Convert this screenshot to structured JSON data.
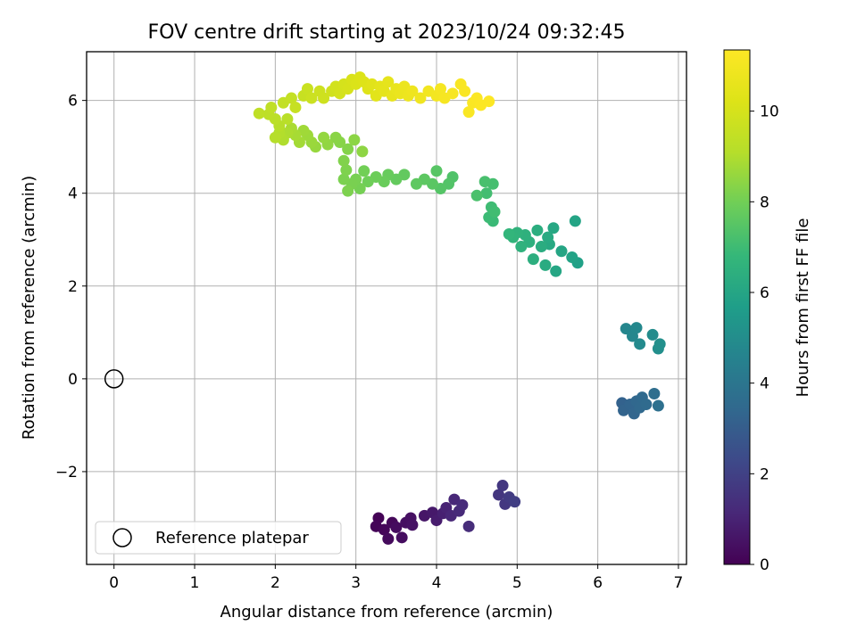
{
  "chart_data": {
    "type": "scatter",
    "title": "FOV centre drift starting at 2023/10/24 09:32:45",
    "xlabel": "Angular distance from reference (arcmin)",
    "ylabel": "Rotation from reference (arcmin)",
    "xlim": [
      -0.34,
      7.1
    ],
    "ylim": [
      -4.0,
      7.05
    ],
    "xticks": [
      "0",
      "1",
      "2",
      "3",
      "4",
      "5",
      "6",
      "7"
    ],
    "yticks": [
      "−2",
      "0",
      "2",
      "4",
      "6"
    ],
    "grid": true,
    "legend": {
      "placement": "lower-left",
      "entries": [
        "Reference platepar"
      ]
    },
    "reference": {
      "name": "Reference platepar",
      "x": 0,
      "y": 0
    },
    "colorbar": {
      "label": "Hours from first FF file",
      "min": 0,
      "max": 11.35,
      "ticks": [
        "0",
        "2",
        "4",
        "6",
        "8",
        "10"
      ],
      "colormap": "viridis"
    },
    "points": [
      {
        "x": 3.28,
        "y": -3.0,
        "h": 0.05
      },
      {
        "x": 3.25,
        "y": -3.18,
        "h": 0.1
      },
      {
        "x": 3.35,
        "y": -3.25,
        "h": 0.15
      },
      {
        "x": 3.45,
        "y": -3.1,
        "h": 0.2
      },
      {
        "x": 3.4,
        "y": -3.45,
        "h": 0.25
      },
      {
        "x": 3.5,
        "y": -3.2,
        "h": 0.3
      },
      {
        "x": 3.57,
        "y": -3.42,
        "h": 0.35
      },
      {
        "x": 3.62,
        "y": -3.1,
        "h": 0.4
      },
      {
        "x": 3.68,
        "y": -3.0,
        "h": 0.45
      },
      {
        "x": 3.7,
        "y": -3.15,
        "h": 0.5
      },
      {
        "x": 3.85,
        "y": -2.95,
        "h": 0.6
      },
      {
        "x": 3.95,
        "y": -2.88,
        "h": 0.7
      },
      {
        "x": 4.0,
        "y": -3.05,
        "h": 0.8
      },
      {
        "x": 4.08,
        "y": -2.9,
        "h": 0.9
      },
      {
        "x": 4.12,
        "y": -2.78,
        "h": 1.0
      },
      {
        "x": 4.18,
        "y": -2.95,
        "h": 1.1
      },
      {
        "x": 4.22,
        "y": -2.6,
        "h": 1.15
      },
      {
        "x": 4.28,
        "y": -2.85,
        "h": 1.2
      },
      {
        "x": 4.32,
        "y": -2.72,
        "h": 1.25
      },
      {
        "x": 4.4,
        "y": -3.18,
        "h": 1.3
      },
      {
        "x": 4.77,
        "y": -2.5,
        "h": 1.6
      },
      {
        "x": 4.82,
        "y": -2.3,
        "h": 1.65
      },
      {
        "x": 4.85,
        "y": -2.7,
        "h": 1.7
      },
      {
        "x": 4.9,
        "y": -2.55,
        "h": 1.8
      },
      {
        "x": 4.97,
        "y": -2.65,
        "h": 1.9
      },
      {
        "x": 6.3,
        "y": -0.52,
        "h": 3.2
      },
      {
        "x": 6.32,
        "y": -0.68,
        "h": 3.25
      },
      {
        "x": 6.4,
        "y": -0.55,
        "h": 3.3
      },
      {
        "x": 6.45,
        "y": -0.75,
        "h": 3.35
      },
      {
        "x": 6.48,
        "y": -0.48,
        "h": 3.4
      },
      {
        "x": 6.52,
        "y": -0.62,
        "h": 3.45
      },
      {
        "x": 6.55,
        "y": -0.4,
        "h": 3.5
      },
      {
        "x": 6.6,
        "y": -0.55,
        "h": 3.55
      },
      {
        "x": 6.7,
        "y": -0.32,
        "h": 3.65
      },
      {
        "x": 6.75,
        "y": -0.58,
        "h": 3.75
      },
      {
        "x": 6.35,
        "y": 1.08,
        "h": 4.7
      },
      {
        "x": 6.43,
        "y": 0.92,
        "h": 4.75
      },
      {
        "x": 6.48,
        "y": 1.1,
        "h": 4.8
      },
      {
        "x": 6.52,
        "y": 0.75,
        "h": 4.85
      },
      {
        "x": 6.68,
        "y": 0.95,
        "h": 4.95
      },
      {
        "x": 6.75,
        "y": 0.65,
        "h": 5.05
      },
      {
        "x": 6.77,
        "y": 0.75,
        "h": 5.1
      },
      {
        "x": 5.75,
        "y": 2.5,
        "h": 5.8
      },
      {
        "x": 5.68,
        "y": 2.62,
        "h": 5.9
      },
      {
        "x": 5.72,
        "y": 3.4,
        "h": 5.95
      },
      {
        "x": 5.55,
        "y": 2.75,
        "h": 6.0
      },
      {
        "x": 5.48,
        "y": 2.32,
        "h": 6.05
      },
      {
        "x": 5.45,
        "y": 3.25,
        "h": 6.1
      },
      {
        "x": 5.4,
        "y": 2.9,
        "h": 6.15
      },
      {
        "x": 5.38,
        "y": 3.05,
        "h": 6.2
      },
      {
        "x": 5.35,
        "y": 2.45,
        "h": 6.25
      },
      {
        "x": 5.3,
        "y": 2.85,
        "h": 6.3
      },
      {
        "x": 5.25,
        "y": 3.2,
        "h": 6.35
      },
      {
        "x": 5.2,
        "y": 2.58,
        "h": 6.4
      },
      {
        "x": 5.15,
        "y": 2.95,
        "h": 6.45
      },
      {
        "x": 5.1,
        "y": 3.1,
        "h": 6.5
      },
      {
        "x": 5.05,
        "y": 2.85,
        "h": 6.55
      },
      {
        "x": 5.0,
        "y": 3.15,
        "h": 6.6
      },
      {
        "x": 4.95,
        "y": 3.05,
        "h": 6.65
      },
      {
        "x": 4.9,
        "y": 3.12,
        "h": 6.7
      },
      {
        "x": 4.7,
        "y": 3.4,
        "h": 6.9
      },
      {
        "x": 4.65,
        "y": 3.48,
        "h": 6.95
      },
      {
        "x": 4.68,
        "y": 3.7,
        "h": 7.0
      },
      {
        "x": 4.72,
        "y": 3.6,
        "h": 7.05
      },
      {
        "x": 4.62,
        "y": 4.0,
        "h": 7.1
      },
      {
        "x": 4.7,
        "y": 4.2,
        "h": 7.15
      },
      {
        "x": 4.6,
        "y": 4.25,
        "h": 7.2
      },
      {
        "x": 4.5,
        "y": 3.95,
        "h": 7.25
      },
      {
        "x": 4.2,
        "y": 4.35,
        "h": 7.35
      },
      {
        "x": 4.15,
        "y": 4.2,
        "h": 7.4
      },
      {
        "x": 4.05,
        "y": 4.1,
        "h": 7.45
      },
      {
        "x": 4.0,
        "y": 4.48,
        "h": 7.5
      },
      {
        "x": 3.95,
        "y": 4.2,
        "h": 7.55
      },
      {
        "x": 3.85,
        "y": 4.3,
        "h": 7.6
      },
      {
        "x": 3.75,
        "y": 4.2,
        "h": 7.65
      },
      {
        "x": 3.6,
        "y": 4.4,
        "h": 7.7
      },
      {
        "x": 3.5,
        "y": 4.3,
        "h": 7.75
      },
      {
        "x": 3.4,
        "y": 4.4,
        "h": 7.8
      },
      {
        "x": 3.35,
        "y": 4.25,
        "h": 7.85
      },
      {
        "x": 3.25,
        "y": 4.35,
        "h": 7.9
      },
      {
        "x": 3.15,
        "y": 4.25,
        "h": 7.95
      },
      {
        "x": 3.1,
        "y": 4.48,
        "h": 8.0
      },
      {
        "x": 3.05,
        "y": 4.1,
        "h": 8.05
      },
      {
        "x": 3.0,
        "y": 4.3,
        "h": 8.1
      },
      {
        "x": 2.95,
        "y": 4.2,
        "h": 8.12
      },
      {
        "x": 2.85,
        "y": 4.3,
        "h": 8.15
      },
      {
        "x": 2.9,
        "y": 4.05,
        "h": 8.18
      },
      {
        "x": 2.88,
        "y": 4.5,
        "h": 8.2
      },
      {
        "x": 2.85,
        "y": 4.7,
        "h": 8.25
      },
      {
        "x": 2.9,
        "y": 4.95,
        "h": 8.3
      },
      {
        "x": 2.8,
        "y": 5.1,
        "h": 8.35
      },
      {
        "x": 2.75,
        "y": 5.2,
        "h": 8.4
      },
      {
        "x": 2.98,
        "y": 5.15,
        "h": 8.42
      },
      {
        "x": 3.08,
        "y": 4.9,
        "h": 8.45
      },
      {
        "x": 2.65,
        "y": 5.05,
        "h": 8.5
      },
      {
        "x": 2.6,
        "y": 5.2,
        "h": 8.55
      },
      {
        "x": 2.5,
        "y": 5.0,
        "h": 8.6
      },
      {
        "x": 2.45,
        "y": 5.1,
        "h": 8.65
      },
      {
        "x": 2.4,
        "y": 5.25,
        "h": 8.7
      },
      {
        "x": 2.35,
        "y": 5.35,
        "h": 8.75
      },
      {
        "x": 2.3,
        "y": 5.1,
        "h": 8.8
      },
      {
        "x": 2.25,
        "y": 5.25,
        "h": 8.85
      },
      {
        "x": 2.2,
        "y": 5.4,
        "h": 8.9
      },
      {
        "x": 2.15,
        "y": 5.3,
        "h": 8.95
      },
      {
        "x": 2.1,
        "y": 5.15,
        "h": 9.0
      },
      {
        "x": 2.05,
        "y": 5.3,
        "h": 9.05
      },
      {
        "x": 2.0,
        "y": 5.2,
        "h": 9.1
      },
      {
        "x": 2.05,
        "y": 5.45,
        "h": 9.15
      },
      {
        "x": 2.15,
        "y": 5.6,
        "h": 9.2
      },
      {
        "x": 2.0,
        "y": 5.6,
        "h": 9.25
      },
      {
        "x": 1.92,
        "y": 5.7,
        "h": 9.3
      },
      {
        "x": 1.8,
        "y": 5.72,
        "h": 9.35
      },
      {
        "x": 1.95,
        "y": 5.85,
        "h": 9.4
      },
      {
        "x": 2.1,
        "y": 5.95,
        "h": 9.45
      },
      {
        "x": 2.2,
        "y": 6.05,
        "h": 9.5
      },
      {
        "x": 2.25,
        "y": 5.85,
        "h": 9.55
      },
      {
        "x": 2.35,
        "y": 6.1,
        "h": 9.6
      },
      {
        "x": 2.4,
        "y": 6.25,
        "h": 9.65
      },
      {
        "x": 2.45,
        "y": 6.05,
        "h": 9.7
      },
      {
        "x": 2.55,
        "y": 6.2,
        "h": 9.75
      },
      {
        "x": 2.6,
        "y": 6.05,
        "h": 9.8
      },
      {
        "x": 2.7,
        "y": 6.2,
        "h": 9.85
      },
      {
        "x": 2.75,
        "y": 6.3,
        "h": 9.9
      },
      {
        "x": 2.8,
        "y": 6.15,
        "h": 9.95
      },
      {
        "x": 2.85,
        "y": 6.35,
        "h": 10.0
      },
      {
        "x": 2.9,
        "y": 6.25,
        "h": 10.05
      },
      {
        "x": 2.95,
        "y": 6.45,
        "h": 10.1
      },
      {
        "x": 3.0,
        "y": 6.35,
        "h": 10.15
      },
      {
        "x": 3.05,
        "y": 6.5,
        "h": 10.2
      },
      {
        "x": 3.1,
        "y": 6.4,
        "h": 10.25
      },
      {
        "x": 3.15,
        "y": 6.25,
        "h": 10.3
      },
      {
        "x": 3.2,
        "y": 6.35,
        "h": 10.35
      },
      {
        "x": 3.25,
        "y": 6.1,
        "h": 10.4
      },
      {
        "x": 3.3,
        "y": 6.3,
        "h": 10.45
      },
      {
        "x": 3.35,
        "y": 6.2,
        "h": 10.5
      },
      {
        "x": 3.4,
        "y": 6.4,
        "h": 10.55
      },
      {
        "x": 3.45,
        "y": 6.1,
        "h": 10.6
      },
      {
        "x": 3.5,
        "y": 6.25,
        "h": 10.65
      },
      {
        "x": 3.55,
        "y": 6.15,
        "h": 10.7
      },
      {
        "x": 3.6,
        "y": 6.3,
        "h": 10.75
      },
      {
        "x": 3.65,
        "y": 6.1,
        "h": 10.8
      },
      {
        "x": 3.7,
        "y": 6.2,
        "h": 10.85
      },
      {
        "x": 3.8,
        "y": 6.05,
        "h": 10.9
      },
      {
        "x": 3.9,
        "y": 6.2,
        "h": 10.95
      },
      {
        "x": 4.0,
        "y": 6.1,
        "h": 11.0
      },
      {
        "x": 4.05,
        "y": 6.25,
        "h": 11.05
      },
      {
        "x": 4.1,
        "y": 6.05,
        "h": 11.1
      },
      {
        "x": 4.2,
        "y": 6.15,
        "h": 11.15
      },
      {
        "x": 4.3,
        "y": 6.35,
        "h": 11.18
      },
      {
        "x": 4.35,
        "y": 6.2,
        "h": 11.2
      },
      {
        "x": 4.4,
        "y": 5.75,
        "h": 11.22
      },
      {
        "x": 4.45,
        "y": 5.95,
        "h": 11.25
      },
      {
        "x": 4.5,
        "y": 6.05,
        "h": 11.28
      },
      {
        "x": 4.55,
        "y": 5.9,
        "h": 11.3
      },
      {
        "x": 4.65,
        "y": 5.98,
        "h": 11.33
      }
    ]
  }
}
